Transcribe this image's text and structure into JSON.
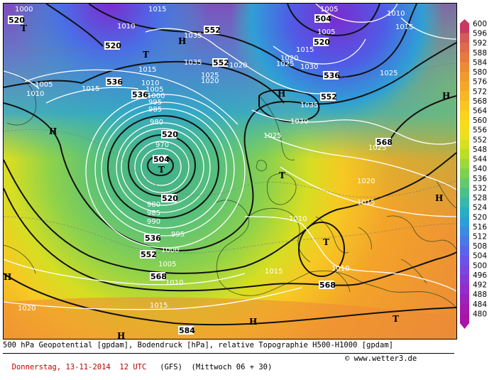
{
  "map": {
    "pressure_centers": [
      {
        "label": "T",
        "kind": "low"
      },
      {
        "label": "H",
        "kind": "high"
      }
    ],
    "geopotential_labels": [
      "520",
      "536",
      "552",
      "568",
      "584",
      "504"
    ],
    "pressure_labels": [
      "1000",
      "1005",
      "1010",
      "1015",
      "1020",
      "1025",
      "1030",
      "1035",
      "970",
      "980",
      "985",
      "990",
      "995"
    ]
  },
  "legend": {
    "values": [
      "600",
      "596",
      "592",
      "588",
      "584",
      "580",
      "576",
      "572",
      "568",
      "564",
      "560",
      "556",
      "552",
      "548",
      "544",
      "540",
      "536",
      "532",
      "528",
      "524",
      "520",
      "516",
      "512",
      "508",
      "504",
      "500",
      "496",
      "492",
      "488",
      "484",
      "480"
    ],
    "colors": [
      "#c83a62",
      "#d65a5a",
      "#e06a4a",
      "#e8783e",
      "#ee8a34",
      "#f2992c",
      "#f5a828",
      "#f7b626",
      "#f9c520",
      "#fbd21c",
      "#f7dc1a",
      "#ecdf1c",
      "#d6e01e",
      "#bcdd28",
      "#9fd83a",
      "#80d050",
      "#66c86a",
      "#4cc08a",
      "#38b8a8",
      "#2aadc2",
      "#2d9ed8",
      "#3a8be2",
      "#4a78e8",
      "#5a64ea",
      "#6a54e8",
      "#7a46e0",
      "#8638d6",
      "#922cca",
      "#9c22be",
      "#a41ab2",
      "#aa14a6"
    ]
  },
  "caption": {
    "line1": "500 hPa Geopotential [gpdam], Bodendruck [hPa], relative Topographie H500-H1000 [gpdam]",
    "date": "Donnerstag, 13-11-2014  12 UTC",
    "model": "(GFS)  (Mittwoch 06 + 30)",
    "site": "www.wetter3.de"
  }
}
